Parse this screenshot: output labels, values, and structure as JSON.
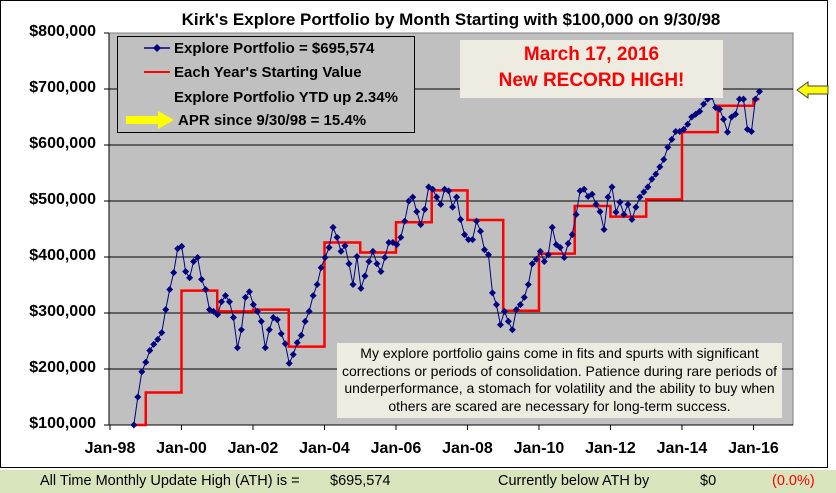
{
  "chart_data": {
    "type": "line",
    "title": "Kirk's Explore Portfolio by Month Starting with $100,000 on 9/30/98",
    "ylim": [
      100000,
      800000
    ],
    "y_ticks": [
      "$100,000",
      "$200,000",
      "$300,000",
      "$400,000",
      "$500,000",
      "$600,000",
      "$700,000",
      "$800,000"
    ],
    "x_ticks": [
      "Jan-98",
      "Jan-00",
      "Jan-02",
      "Jan-04",
      "Jan-06",
      "Jan-08",
      "Jan-10",
      "Jan-12",
      "Jan-14",
      "Jan-16"
    ],
    "grid": "horizontal",
    "series": [
      {
        "name": "Explore Portfolio",
        "color": "#000080",
        "start": "1998-09",
        "end": "2016-03",
        "values_thousands": [
          100,
          150,
          195,
          212,
          233,
          244,
          253,
          265,
          306,
          342,
          372,
          415,
          419,
          374,
          363,
          392,
          399,
          360,
          342,
          306,
          303,
          297,
          320,
          331,
          320,
          292,
          238,
          270,
          328,
          338,
          315,
          303,
          285,
          238,
          270,
          292,
          288,
          263,
          245,
          210,
          226,
          247,
          260,
          285,
          303,
          331,
          351,
          381,
          399,
          417,
          453,
          435,
          410,
          420,
          388,
          351,
          401,
          344,
          366,
          392,
          410,
          388,
          374,
          399,
          426,
          426,
          422,
          435,
          464,
          500,
          507,
          481,
          458,
          485,
          525,
          521,
          507,
          494,
          521,
          518,
          489,
          507,
          467,
          440,
          431,
          431,
          464,
          446,
          413,
          404,
          336,
          315,
          279,
          303,
          285,
          270,
          306,
          315,
          328,
          351,
          388,
          396,
          410,
          392,
          404,
          453,
          422,
          417,
          399,
          424,
          440,
          476,
          518,
          521,
          508,
          512,
          494,
          481,
          449,
          507,
          525,
          480,
          498,
          476,
          494,
          467,
          489,
          507,
          516,
          525,
          539,
          548,
          561,
          574,
          596,
          610,
          624,
          624,
          628,
          637,
          650,
          655,
          660,
          673,
          682,
          687,
          667,
          664,
          646,
          623,
          650,
          655,
          682,
          682,
          628,
          624,
          682,
          695.574
        ]
      },
      {
        "name": "Each Year's Starting Value",
        "color": "#ff0000",
        "steps": [
          {
            "year": 1998,
            "from": "1998-09",
            "value_thousands": 100
          },
          {
            "year": 1999,
            "value_thousands": 158
          },
          {
            "year": 2000,
            "value_thousands": 340
          },
          {
            "year": 2001,
            "value_thousands": 303
          },
          {
            "year": 2002,
            "value_thousands": 306
          },
          {
            "year": 2003,
            "value_thousands": 240
          },
          {
            "year": 2004,
            "value_thousands": 426
          },
          {
            "year": 2005,
            "value_thousands": 408
          },
          {
            "year": 2006,
            "value_thousands": 462
          },
          {
            "year": 2007,
            "value_thousands": 519
          },
          {
            "year": 2008,
            "value_thousands": 466
          },
          {
            "year": 2009,
            "value_thousands": 304
          },
          {
            "year": 2010,
            "value_thousands": 406
          },
          {
            "year": 2011,
            "value_thousands": 491
          },
          {
            "year": 2012,
            "value_thousands": 472
          },
          {
            "year": 2013,
            "value_thousands": 503
          },
          {
            "year": 2014,
            "value_thousands": 623
          },
          {
            "year": 2015,
            "value_thousands": 670
          },
          {
            "year": 2016,
            "to": "2016-03",
            "value_thousands": 682
          }
        ]
      }
    ],
    "legend": {
      "placement": "top-left",
      "series_label": "Explore Portfolio  =  $695,574",
      "steps_label": "Each Year's Starting Value",
      "ytd_label": "Explore Portfolio YTD up 2.34%",
      "apr_label": "APR since 9/30/98 =  15.4%"
    },
    "annotations": {
      "record_line1": "March 17, 2016",
      "record_line2": "New RECORD HIGH!",
      "note": "My explore portfolio gains come in fits and spurts with significant corrections or periods of consolidation.  Patience during rare periods of underperformance, a stomach for volatility and the ability to buy when others are scared are necessary for long-term success.",
      "arrow_color": "#ffff00"
    }
  },
  "footer": {
    "ath_label": "All Time Monthly Update High (ATH) is =",
    "ath_value": "$695,574",
    "below_label": "Currently below ATH by",
    "below_value": "$0",
    "below_pct": "(0.0%)"
  }
}
